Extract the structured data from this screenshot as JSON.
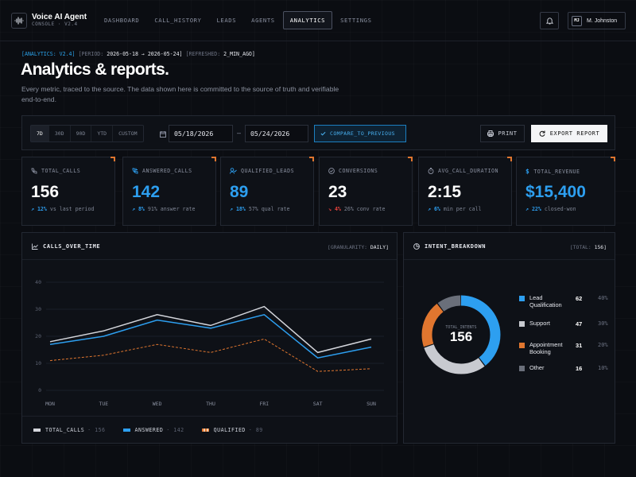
{
  "app": {
    "name": "Voice AI Agent",
    "subtitle": "CONSOLE · V2.4"
  },
  "nav": [
    "DASHBOARD",
    "CALL_HISTORY",
    "LEADS",
    "AGENTS",
    "ANALYTICS",
    "SETTINGS"
  ],
  "nav_active": "ANALYTICS",
  "user": {
    "initials": "MJ",
    "name": "M. Johnston"
  },
  "header": {
    "tag": "[ANALYTICS: V2.4]",
    "period_label": "[PERIOD:",
    "period_value": "2026-05-18 → 2026-05-24]",
    "refreshed_label": "[REFRESHED:",
    "refreshed_value": "2_MIN_AGO]",
    "title": "Analytics & reports.",
    "subtitle": "Every metric, traced to the source. The data shown here is committed to the source of truth and verifiable end-to-end."
  },
  "filters": {
    "ranges": [
      "7D",
      "30D",
      "90D",
      "YTD",
      "CUSTOM"
    ],
    "active_range": "7D",
    "date_from": "05/18/2026",
    "date_to": "05/24/2026",
    "compare": "COMPARE_TO_PREVIOUS",
    "print": "PRINT",
    "export": "EXPORT REPORT"
  },
  "kpis": [
    {
      "label": "TOTAL_CALLS",
      "value": "156",
      "delta": "12%",
      "dir": "up",
      "note": "vs last period",
      "blue": false,
      "icon": "phone-icon"
    },
    {
      "label": "ANSWERED_CALLS",
      "value": "142",
      "delta": "8%",
      "dir": "up",
      "note": "91% answer rate",
      "blue": true,
      "icon": "phone-incoming-icon"
    },
    {
      "label": "QUALIFIED_LEADS",
      "value": "89",
      "delta": "18%",
      "dir": "up",
      "note": "57% qual rate",
      "blue": true,
      "icon": "user-check-icon"
    },
    {
      "label": "CONVERSIONS",
      "value": "23",
      "delta": "4%",
      "dir": "down",
      "note": "26% conv rate",
      "blue": false,
      "icon": "check-circle-icon"
    },
    {
      "label": "AVG_CALL_DURATION",
      "value": "2:15",
      "delta": "6%",
      "dir": "up",
      "note": "min per call",
      "blue": false,
      "icon": "timer-icon"
    },
    {
      "label": "TOTAL_REVENUE",
      "value": "$15,400",
      "delta": "22%",
      "dir": "up",
      "note": "closed-won",
      "blue": true,
      "icon": "dollar-icon"
    }
  ],
  "calls_chart": {
    "title": "CALLS_OVER_TIME",
    "granularity_label": "[GRANULARITY:",
    "granularity_value": "DAILY]",
    "legend": [
      {
        "name": "TOTAL_CALLS",
        "count": "· 156"
      },
      {
        "name": "ANSWERED",
        "count": "· 142"
      },
      {
        "name": "QUALIFIED",
        "count": "· 89"
      }
    ]
  },
  "chart_data": {
    "type": "line",
    "categories": [
      "MON",
      "TUE",
      "WED",
      "THU",
      "FRI",
      "SAT",
      "SUN"
    ],
    "series": [
      {
        "name": "TOTAL_CALLS",
        "color": "#d4d6dc",
        "dashed": false,
        "values": [
          18,
          22,
          28,
          24,
          31,
          14,
          19
        ]
      },
      {
        "name": "ANSWERED",
        "color": "#2d9ff0",
        "dashed": false,
        "values": [
          17,
          20,
          26,
          23,
          28,
          12,
          16
        ]
      },
      {
        "name": "QUALIFIED",
        "color": "#e0762f",
        "dashed": true,
        "values": [
          11,
          13,
          17,
          14,
          19,
          7,
          8
        ]
      }
    ],
    "ylim": [
      0,
      40
    ],
    "yticks": [
      0,
      10,
      20,
      30,
      40
    ],
    "grid": true
  },
  "intent": {
    "title": "INTENT_BREAKDOWN",
    "total_label": "[TOTAL:",
    "total_value": "156]",
    "center_label": "TOTAL_INTENTS",
    "center_value": "156",
    "items": [
      {
        "name": "Lead Qualification",
        "count": 62,
        "pct": "40%",
        "color": "#2d9ff0"
      },
      {
        "name": "Support",
        "count": 47,
        "pct": "30%",
        "color": "#c8cad0"
      },
      {
        "name": "Appointment Booking",
        "count": 31,
        "pct": "20%",
        "color": "#e0762f"
      },
      {
        "name": "Other",
        "count": 16,
        "pct": "10%",
        "color": "#6a6f7a"
      }
    ]
  }
}
